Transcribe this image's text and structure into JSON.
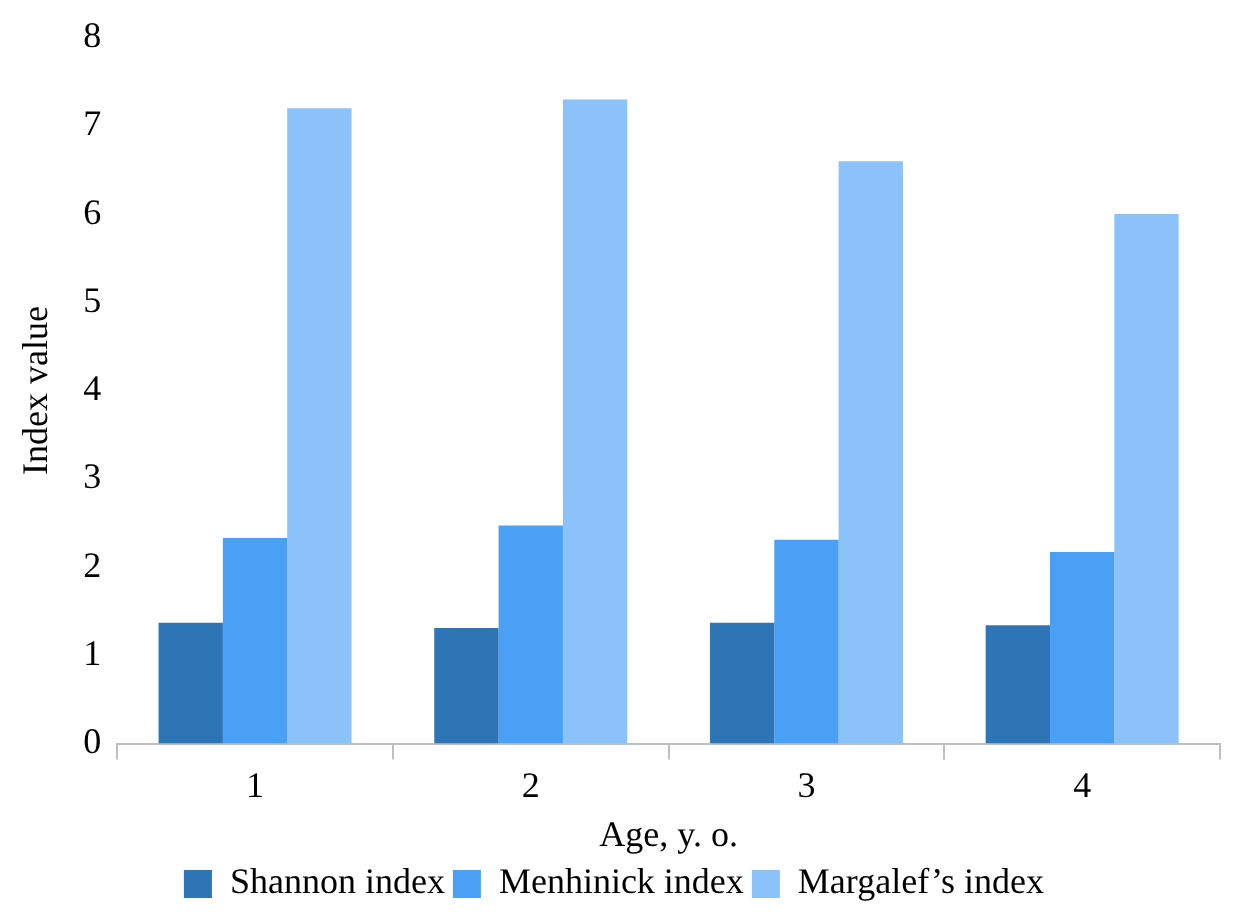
{
  "chart_data": {
    "type": "bar",
    "xlabel": "Age, y. o.",
    "ylabel": "Index value",
    "categories": [
      "1",
      "2",
      "3",
      "4"
    ],
    "series": [
      {
        "name": "Shannon index",
        "color": "#2e75b6",
        "values": [
          1.37,
          1.31,
          1.37,
          1.34
        ]
      },
      {
        "name": "Menhinick index",
        "color": "#4aa0f5",
        "values": [
          2.33,
          2.47,
          2.31,
          2.17
        ]
      },
      {
        "name": "Margalef’s index",
        "color": "#8cc2fa",
        "values": [
          7.2,
          7.3,
          6.6,
          6.0
        ]
      }
    ],
    "ylim": [
      0,
      8
    ],
    "yticks": [
      0,
      1,
      2,
      3,
      4,
      5,
      6,
      7,
      8
    ],
    "grid": false,
    "legend": "bottom"
  }
}
